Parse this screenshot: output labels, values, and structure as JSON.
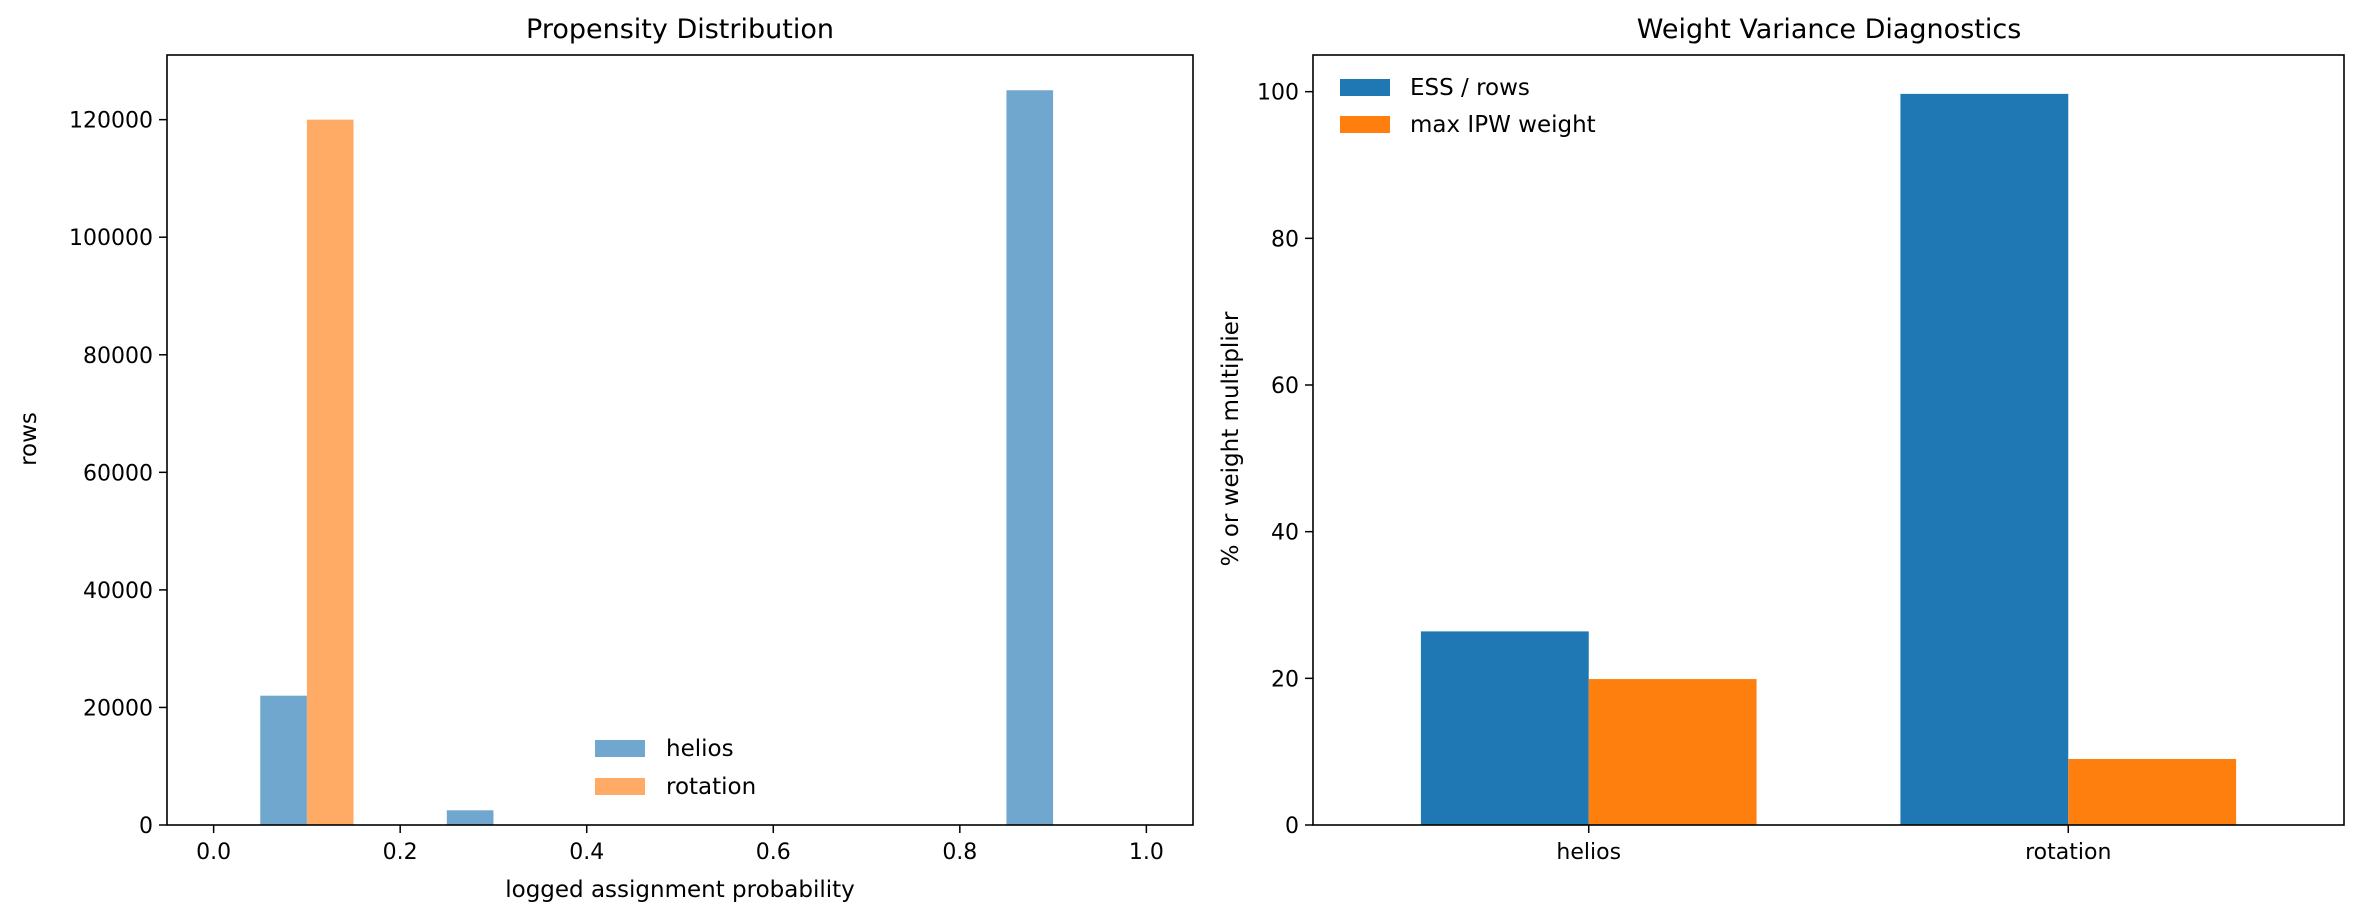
{
  "chart_data": [
    {
      "type": "bar",
      "title": "Propensity Distribution",
      "xlabel": "logged assignment probability",
      "ylabel": "rows",
      "xlim": [
        -0.05,
        1.05
      ],
      "ylim": [
        0,
        131000
      ],
      "xticks": [
        0.0,
        0.2,
        0.4,
        0.6,
        0.8,
        1.0
      ],
      "xtick_labels": [
        "0.0",
        "0.2",
        "0.4",
        "0.6",
        "0.8",
        "1.0"
      ],
      "yticks": [
        0,
        20000,
        40000,
        60000,
        80000,
        100000,
        120000
      ],
      "ytick_labels": [
        "0",
        "20000",
        "40000",
        "60000",
        "80000",
        "100000",
        "120000"
      ],
      "grid": false,
      "legend_position": "lower-center",
      "series": [
        {
          "name": "helios",
          "color": "#6fa7cf",
          "bins": [
            {
              "x0": 0.05,
              "x1": 0.1,
              "value": 22000
            },
            {
              "x0": 0.25,
              "x1": 0.3,
              "value": 2500
            },
            {
              "x0": 0.85,
              "x1": 0.9,
              "value": 125000
            }
          ]
        },
        {
          "name": "rotation",
          "color": "#ffab66",
          "bins": [
            {
              "x0": 0.1,
              "x1": 0.15,
              "value": 120000
            }
          ]
        }
      ]
    },
    {
      "type": "bar",
      "title": "Weight Variance Diagnostics",
      "xlabel": "",
      "ylabel": "% or weight multiplier",
      "ylim": [
        0,
        105
      ],
      "yticks": [
        0,
        20,
        40,
        60,
        80,
        100
      ],
      "ytick_labels": [
        "0",
        "20",
        "40",
        "60",
        "80",
        "100"
      ],
      "categories": [
        "helios",
        "rotation"
      ],
      "grid": false,
      "legend_position": "top-left",
      "series": [
        {
          "name": "ESS / rows",
          "color": "#1f77b4",
          "values": [
            26.4,
            99.7
          ]
        },
        {
          "name": "max IPW weight",
          "color": "#ff7f0e",
          "values": [
            19.9,
            9.0
          ]
        }
      ]
    }
  ]
}
